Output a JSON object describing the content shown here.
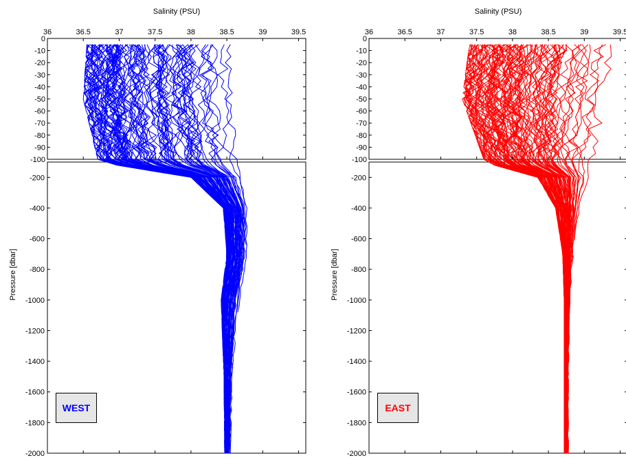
{
  "chart_data": [
    {
      "type": "line",
      "panel": "WEST",
      "label": "WEST",
      "color": "#0000ff",
      "xlabel": "Salinity (PSU)",
      "ylabel": "Pressure [dbar]",
      "x_axis_position": "top",
      "xlim": [
        36,
        39.6
      ],
      "xticks": [
        "36",
        "36.5",
        "37",
        "37.5",
        "38",
        "38.5",
        "39",
        "39.5"
      ],
      "upper_panel": {
        "ylim": [
          -100,
          0
        ],
        "yticks": [
          "0",
          "-10",
          "-20",
          "-30",
          "-40",
          "-50",
          "-60",
          "-70",
          "-80",
          "-90",
          "-100"
        ]
      },
      "lower_panel": {
        "ylim": [
          -2000,
          -100
        ],
        "yticks": [
          "-200",
          "-400",
          "-600",
          "-800",
          "-1000",
          "-1200",
          "-1400",
          "-1600",
          "-1800",
          "-2000"
        ]
      },
      "envelope": [
        {
          "pressure": -5,
          "salinity_min": 36.55,
          "salinity_max": 38.55
        },
        {
          "pressure": -50,
          "salinity_min": 36.5,
          "salinity_max": 38.58
        },
        {
          "pressure": -100,
          "salinity_min": 36.7,
          "salinity_max": 38.65
        },
        {
          "pressure": -200,
          "salinity_min": 38.0,
          "salinity_max": 38.7
        },
        {
          "pressure": -400,
          "salinity_min": 38.45,
          "salinity_max": 38.78
        },
        {
          "pressure": -700,
          "salinity_min": 38.5,
          "salinity_max": 38.78
        },
        {
          "pressure": -1000,
          "salinity_min": 38.42,
          "salinity_max": 38.68
        },
        {
          "pressure": -1500,
          "salinity_min": 38.46,
          "salinity_max": 38.58
        },
        {
          "pressure": -2000,
          "salinity_min": 38.47,
          "salinity_max": 38.55
        }
      ],
      "legend": "bottom-left",
      "grid": false
    },
    {
      "type": "line",
      "panel": "EAST",
      "label": "EAST",
      "color": "#ff0000",
      "xlabel": "Salinity (PSU)",
      "ylabel": "Pressure [dbar]",
      "x_axis_position": "top",
      "xlim": [
        36,
        39.6
      ],
      "xticks": [
        "36",
        "36.5",
        "37",
        "37.5",
        "38",
        "38.5",
        "39",
        "39.5"
      ],
      "upper_panel": {
        "ylim": [
          -100,
          0
        ],
        "yticks": [
          "0",
          "-10",
          "-20",
          "-30",
          "-40",
          "-50",
          "-60",
          "-70",
          "-80",
          "-90",
          "-100"
        ]
      },
      "lower_panel": {
        "ylim": [
          -2000,
          -100
        ],
        "yticks": [
          "-200",
          "-400",
          "-600",
          "-800",
          "-1000",
          "-1200",
          "-1400",
          "-1600",
          "-1800",
          "-2000"
        ]
      },
      "envelope": [
        {
          "pressure": -5,
          "salinity_min": 37.4,
          "salinity_max": 39.55
        },
        {
          "pressure": -50,
          "salinity_min": 37.3,
          "salinity_max": 39.4
        },
        {
          "pressure": -100,
          "salinity_min": 37.6,
          "salinity_max": 39.2
        },
        {
          "pressure": -200,
          "salinity_min": 38.35,
          "salinity_max": 39.1
        },
        {
          "pressure": -400,
          "salinity_min": 38.6,
          "salinity_max": 38.95
        },
        {
          "pressure": -700,
          "salinity_min": 38.7,
          "salinity_max": 38.85
        },
        {
          "pressure": -1000,
          "salinity_min": 38.72,
          "salinity_max": 38.8
        },
        {
          "pressure": -1500,
          "salinity_min": 38.72,
          "salinity_max": 38.78
        },
        {
          "pressure": -2000,
          "salinity_min": 38.72,
          "salinity_max": 38.78
        }
      ],
      "legend": "bottom-left",
      "grid": false
    }
  ]
}
